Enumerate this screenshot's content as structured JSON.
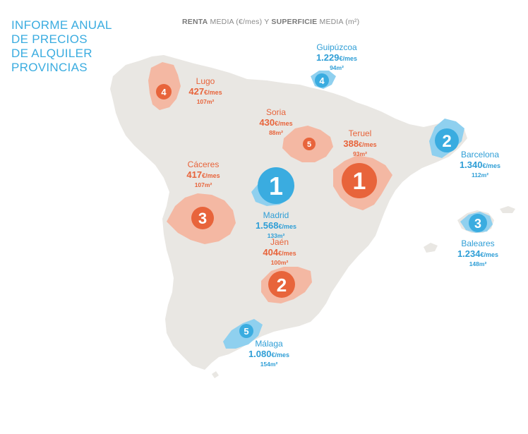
{
  "title_lines": [
    "INFORME ANUAL",
    "DE PRECIOS",
    "DE ALQUILER",
    "PROVINCIAS"
  ],
  "subtitle": {
    "renta": "RENTA",
    "media1": " MEDIA (€/mes) Y ",
    "superficie": "SUPERFICIE",
    "media2": " MEDIA (m²)"
  },
  "colors": {
    "land": "#e9e7e3",
    "orange_region": "#f4b8a3",
    "orange_marker": "#e8643b",
    "blue_region": "#8fd0ef",
    "blue_marker": "#3aace0"
  },
  "provinces": [
    {
      "id": "lugo",
      "name": "Lugo",
      "price": "427",
      "unit": "€/mes",
      "area": "107m²",
      "rank": "4",
      "group": "orange"
    },
    {
      "id": "soria",
      "name": "Soria",
      "price": "430",
      "unit": "€/mes",
      "area": "88m²",
      "rank": "5",
      "group": "orange"
    },
    {
      "id": "teruel",
      "name": "Teruel",
      "price": "388",
      "unit": "€/mes",
      "area": "93m²",
      "rank": "1",
      "group": "orange"
    },
    {
      "id": "caceres",
      "name": "Cáceres",
      "price": "417",
      "unit": "€/mes",
      "area": "107m²",
      "rank": "3",
      "group": "orange"
    },
    {
      "id": "jaen",
      "name": "Jaén",
      "price": "404",
      "unit": "€/mes",
      "area": "100m²",
      "rank": "2",
      "group": "orange"
    },
    {
      "id": "guipuzcoa",
      "name": "Guipúzcoa",
      "price": "1.229",
      "unit": "€/mes",
      "area": "94m²",
      "rank": "4",
      "group": "blue"
    },
    {
      "id": "barcelona",
      "name": "Barcelona",
      "price": "1.340",
      "unit": "€/mes",
      "area": "112m²",
      "rank": "2",
      "group": "blue"
    },
    {
      "id": "madrid",
      "name": "Madrid",
      "price": "1.568",
      "unit": "€/mes",
      "area": "133m²",
      "rank": "1",
      "group": "blue"
    },
    {
      "id": "baleares",
      "name": "Baleares",
      "price": "1.234",
      "unit": "€/mes",
      "area": "148m²",
      "rank": "3",
      "group": "blue"
    },
    {
      "id": "malaga",
      "name": "Málaga",
      "price": "1.080",
      "unit": "€/mes",
      "area": "154m²",
      "rank": "5",
      "group": "blue"
    }
  ]
}
